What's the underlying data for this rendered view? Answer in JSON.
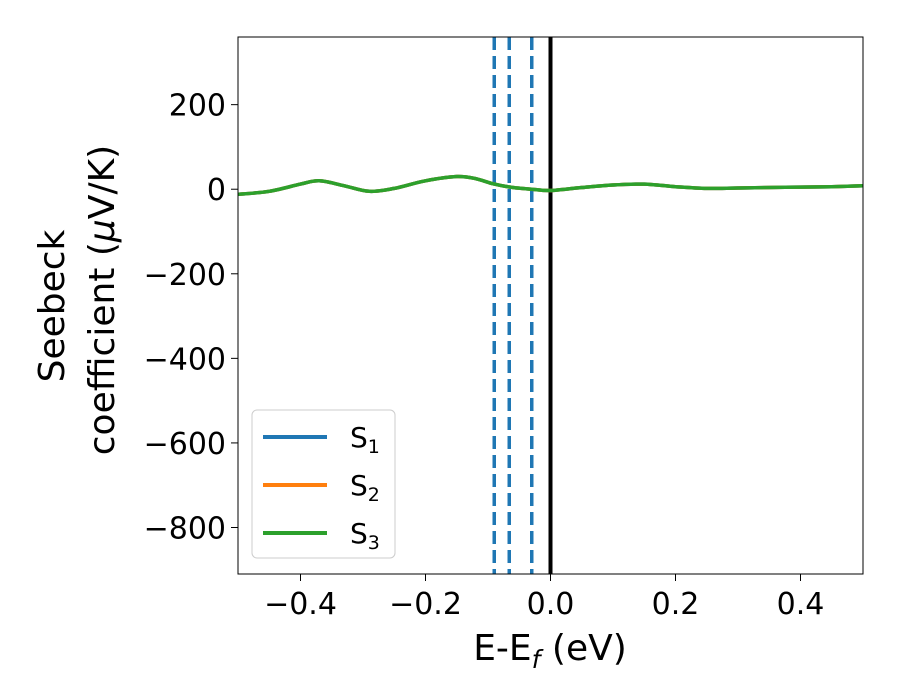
{
  "chart_data": {
    "type": "line",
    "title": "",
    "xlabel": "E-E",
    "xlabel_sub": "f",
    "xlabel_unit": " (eV)",
    "ylabel_line1": "Seebeck",
    "ylabel_line2": "coefficient  (",
    "ylabel_mu": "μ",
    "ylabel_unit": "V/K)",
    "xlim": [
      -0.5,
      0.5
    ],
    "ylim": [
      -910,
      360
    ],
    "xticks": [
      -0.4,
      -0.2,
      0.0,
      0.2,
      0.4
    ],
    "xtick_labels": [
      "−0.4",
      "−0.2",
      "0.0",
      "0.2",
      "0.4"
    ],
    "yticks": [
      200,
      0,
      -200,
      -400,
      -600,
      -800
    ],
    "ytick_labels": [
      "200",
      "0",
      "−200",
      "−400",
      "−600",
      "−800"
    ],
    "grid": false,
    "legend_position": "lower-left",
    "series": [
      {
        "name": "S",
        "sub": "1",
        "color": "#1f77b4",
        "x": [
          -0.5,
          -0.45,
          -0.4,
          -0.37,
          -0.33,
          -0.29,
          -0.25,
          -0.2,
          -0.15,
          -0.12,
          -0.09,
          -0.06,
          -0.03,
          0.0,
          0.05,
          0.1,
          0.15,
          0.2,
          0.25,
          0.3,
          0.35,
          0.4,
          0.45,
          0.5
        ],
        "y": [
          -12,
          -5,
          12,
          20,
          8,
          -5,
          2,
          20,
          30,
          25,
          12,
          4,
          0,
          -3,
          4,
          10,
          12,
          6,
          2,
          3,
          4,
          5,
          6,
          8
        ]
      },
      {
        "name": "S",
        "sub": "2",
        "color": "#ff7f0e",
        "x": [
          -0.5,
          -0.45,
          -0.4,
          -0.37,
          -0.33,
          -0.29,
          -0.25,
          -0.2,
          -0.15,
          -0.12,
          -0.09,
          -0.06,
          -0.03,
          0.0,
          0.05,
          0.1,
          0.15,
          0.2,
          0.25,
          0.3,
          0.35,
          0.4,
          0.45,
          0.5
        ],
        "y": [
          -12,
          -5,
          12,
          20,
          8,
          -5,
          2,
          20,
          30,
          25,
          12,
          4,
          0,
          -3,
          4,
          10,
          12,
          6,
          2,
          3,
          4,
          5,
          6,
          8
        ]
      },
      {
        "name": "S",
        "sub": "3",
        "color": "#2ca02c",
        "x": [
          -0.5,
          -0.45,
          -0.4,
          -0.37,
          -0.33,
          -0.29,
          -0.25,
          -0.2,
          -0.15,
          -0.12,
          -0.09,
          -0.06,
          -0.03,
          0.0,
          0.05,
          0.1,
          0.15,
          0.2,
          0.25,
          0.3,
          0.35,
          0.4,
          0.45,
          0.5
        ],
        "y": [
          -12,
          -5,
          12,
          20,
          8,
          -5,
          2,
          20,
          30,
          25,
          12,
          4,
          0,
          -3,
          4,
          10,
          12,
          6,
          2,
          3,
          4,
          5,
          6,
          8
        ]
      }
    ],
    "vlines": [
      {
        "x": -0.09,
        "color": "#1f77b4",
        "style": "dashed"
      },
      {
        "x": -0.066,
        "color": "#1f77b4",
        "style": "dashed"
      },
      {
        "x": -0.03,
        "color": "#1f77b4",
        "style": "dashed"
      },
      {
        "x": 0.0,
        "color": "#000000",
        "style": "solid"
      }
    ]
  }
}
